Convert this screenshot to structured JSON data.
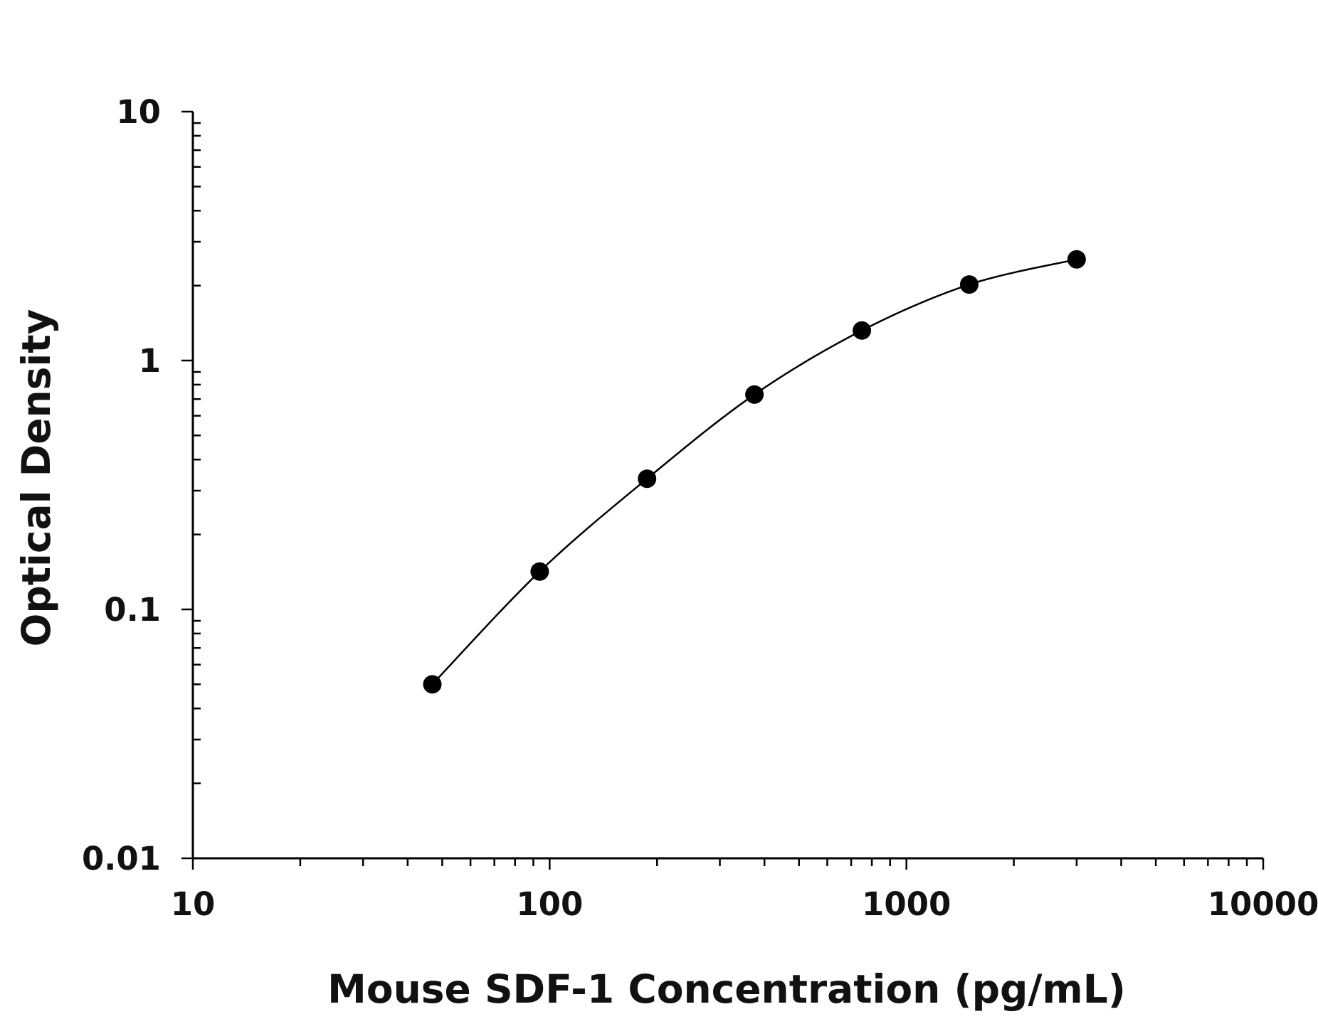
{
  "chart_data": {
    "type": "scatter",
    "title": "",
    "xlabel": "Mouse SDF-1 Concentration (pg/mL)",
    "ylabel": "Optical Density",
    "x_scale": "log",
    "y_scale": "log",
    "xlim": [
      10,
      10000
    ],
    "ylim": [
      0.01,
      10
    ],
    "grid": false,
    "x_tick_labels": [
      "10",
      "100",
      "1000",
      "10000"
    ],
    "y_tick_labels": [
      "10",
      "1",
      "0.1",
      "0.01"
    ],
    "series": [
      {
        "points": [
          {
            "x": 46.9,
            "y": 0.05
          },
          {
            "x": 93.8,
            "y": 0.142
          },
          {
            "x": 187.5,
            "y": 0.335
          },
          {
            "x": 375,
            "y": 0.73
          },
          {
            "x": 750,
            "y": 1.32
          },
          {
            "x": 1500,
            "y": 2.02
          },
          {
            "x": 3000,
            "y": 2.55
          }
        ],
        "fit_curve": true
      }
    ],
    "colors": {
      "marker": "#000000",
      "line": "#000000",
      "axis": "#000000"
    }
  }
}
